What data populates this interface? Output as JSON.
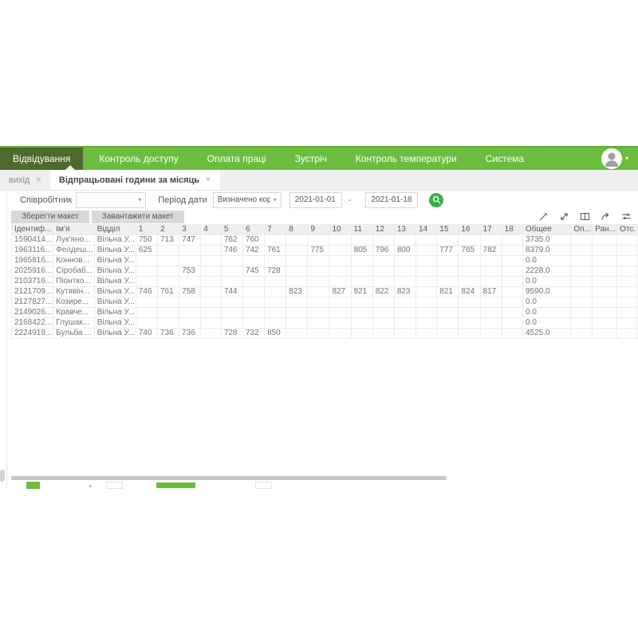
{
  "theme": {
    "green": "#6cbd3f",
    "green_edge": "#61ac35",
    "nav_active": "#4d6a2d",
    "search_green": "#3daf4d"
  },
  "icons": {
    "close": "✕",
    "chevron_down": "▾",
    "user_caret": "▾"
  },
  "nav": {
    "items": [
      "Відвідування",
      "Контроль доступу",
      "Оплата праці",
      "Зустріч",
      "Контроль температури",
      "Система"
    ],
    "active_index": 0
  },
  "tabs": [
    {
      "label": "вихід",
      "active": false
    },
    {
      "label": "Відпрацьовані години за місяць",
      "active": true
    }
  ],
  "filters": {
    "employee_label": "Співробітник",
    "employee_value": "",
    "period_label": "Період дати",
    "period_value": "Визначено користу",
    "date_from": "2021-01-01",
    "date_separator": "-",
    "date_to": "2021-01-18"
  },
  "toolbar": {
    "save_layout": "Зберегти макет",
    "load_layout": "Завантажити макет",
    "icons": [
      "edit-icon",
      "expand-icon",
      "columns-icon",
      "export-icon",
      "filter-icon"
    ]
  },
  "table": {
    "header": {
      "id": "Ідентиф...",
      "name": "Ім’я",
      "dept": "Відділ",
      "total": "Общее",
      "extra": [
        "Оп...",
        "Ран...",
        "Отс."
      ]
    },
    "day_columns": [
      "1",
      "2",
      "3",
      "4",
      "5",
      "6",
      "7",
      "8",
      "9",
      "10",
      "11",
      "12",
      "13",
      "14",
      "15",
      "16",
      "17",
      "18"
    ],
    "rows": [
      {
        "id": "1590414...",
        "name": "Лук’яно...",
        "dept": "Вільна У...",
        "days": {
          "1": "750",
          "2": "713",
          "3": "747",
          "5": "762",
          "6": "760"
        },
        "total": "3735.0"
      },
      {
        "id": "1963116...",
        "name": "Фелдеш...",
        "dept": "Вільна У...",
        "days": {
          "1": "625",
          "5": "746",
          "6": "742",
          "7": "761",
          "9": "775",
          "11": "805",
          "12": "796",
          "13": "800",
          "15": "777",
          "16": "765",
          "17": "782"
        },
        "total": "8379.0"
      },
      {
        "id": "1965816...",
        "name": "Коннов...",
        "dept": "Вільна У...",
        "days": {},
        "total": "0.0"
      },
      {
        "id": "2025916...",
        "name": "Сіробаб...",
        "dept": "Вільна У...",
        "days": {
          "3": "753",
          "6": "745",
          "7": "728"
        },
        "total": "2228.0"
      },
      {
        "id": "2103716...",
        "name": "Піонтко...",
        "dept": "Вільна У...",
        "days": {},
        "total": "0.0"
      },
      {
        "id": "2121709...",
        "name": "Кутявін...",
        "dept": "Вільна У...",
        "days": {
          "1": "746",
          "2": "761",
          "3": "758",
          "5": "744",
          "8": "823",
          "10": "827",
          "11": "821",
          "12": "822",
          "13": "823",
          "15": "821",
          "16": "824",
          "17": "817"
        },
        "total": "9590.0"
      },
      {
        "id": "2127827...",
        "name": "Козире...",
        "dept": "Вільна У...",
        "days": {},
        "total": "0.0"
      },
      {
        "id": "2149026...",
        "name": "Кравче...",
        "dept": "Вільна У...",
        "days": {},
        "total": "0.0"
      },
      {
        "id": "2168422...",
        "name": "Глушак...",
        "dept": "Вільна У...",
        "days": {},
        "total": "0.0"
      },
      {
        "id": "2224919...",
        "name": "Бульба ...",
        "dept": "Вільна У...",
        "days": {
          "1": "740",
          "2": "736",
          "3": "736",
          "5": "728",
          "6": "732",
          "7": "850"
        },
        "total": "4525.0"
      }
    ]
  },
  "footer": {
    "legend_swatches": [
      {
        "name": "legend-swatch-green-small",
        "color": "#6cbd3f"
      },
      {
        "name": "legend-dot",
        "color": "#c9c9c9"
      },
      {
        "name": "legend-swatch-white-1",
        "color": "#ffffff"
      },
      {
        "name": "legend-swatch-green-wide",
        "color": "#6cbd3f"
      },
      {
        "name": "legend-swatch-white-2",
        "color": "#ffffff"
      }
    ]
  }
}
